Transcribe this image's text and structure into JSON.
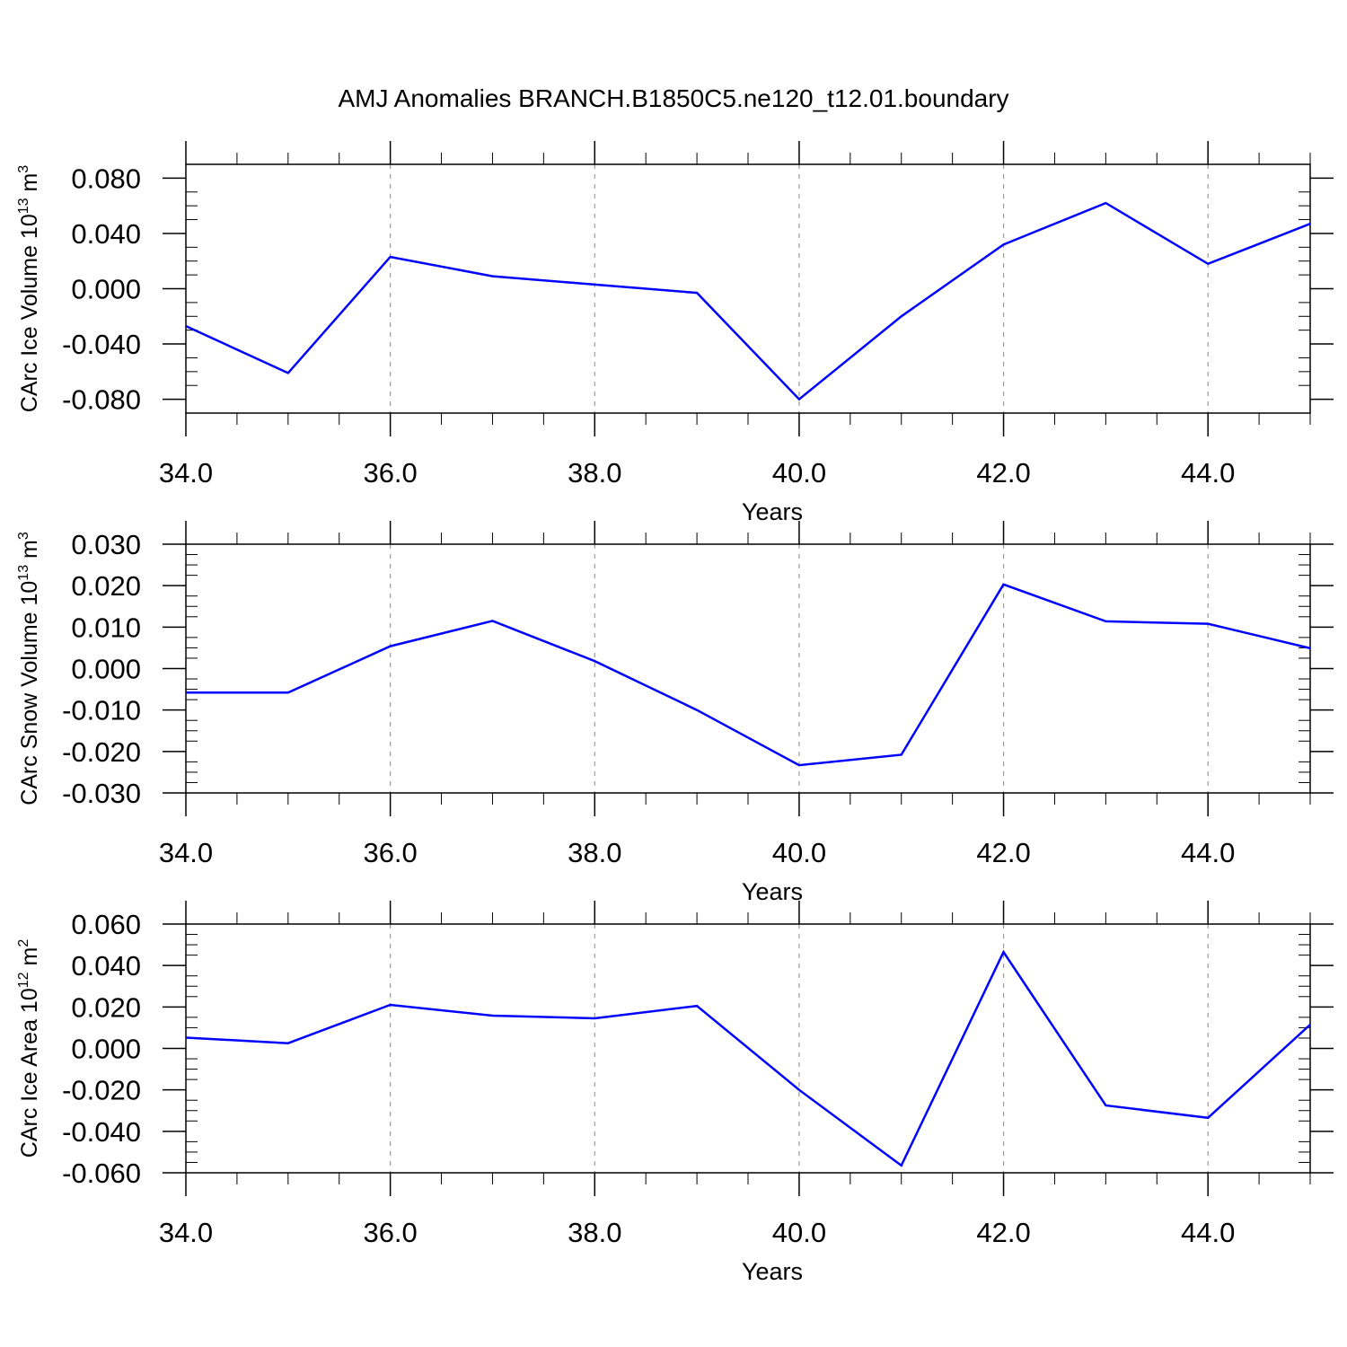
{
  "title": "AMJ Anomalies BRANCH.B1850C5.ne120_t12.01.boundary",
  "chart_data": [
    {
      "type": "line",
      "ylabel": {
        "main": "CArc Ice Volume 10",
        "sup": "13",
        "unit": " m",
        "unit_sup": "3"
      },
      "xlabel": "Years",
      "xlim": [
        34,
        45
      ],
      "ylim": [
        -0.09,
        0.09
      ],
      "xticks": [
        34,
        36,
        38,
        40,
        42,
        44
      ],
      "xtick_labels": [
        "34.0",
        "36.0",
        "38.0",
        "40.0",
        "42.0",
        "44.0"
      ],
      "yticks": [
        0.08,
        0.04,
        0.0,
        -0.04,
        -0.08
      ],
      "ytick_labels": [
        "0.080",
        "0.040",
        "0.000",
        "-0.040",
        "-0.080"
      ],
      "grid": "vertical dashed at major x ticks",
      "x": [
        34,
        35,
        36,
        37,
        38,
        39,
        40,
        41,
        42,
        43,
        44,
        45
      ],
      "series": [
        {
          "color": "#0000ff",
          "values": [
            -0.027,
            -0.061,
            0.023,
            0.009,
            0.003,
            -0.003,
            -0.08,
            -0.02,
            0.032,
            0.062,
            0.018,
            0.047
          ]
        }
      ]
    },
    {
      "type": "line",
      "ylabel": {
        "main": "CArc Snow Volume 10",
        "sup": "13",
        "unit": " m",
        "unit_sup": "3"
      },
      "xlabel": "Years",
      "xlim": [
        34,
        45
      ],
      "ylim": [
        -0.03,
        0.03
      ],
      "xticks": [
        34,
        36,
        38,
        40,
        42,
        44
      ],
      "xtick_labels": [
        "34.0",
        "36.0",
        "38.0",
        "40.0",
        "42.0",
        "44.0"
      ],
      "yticks": [
        0.03,
        0.02,
        0.01,
        0.0,
        -0.01,
        -0.02,
        -0.03
      ],
      "ytick_labels": [
        "0.030",
        "0.020",
        "0.010",
        "0.000",
        "-0.010",
        "-0.020",
        "-0.030"
      ],
      "grid": "vertical dashed at major x ticks",
      "x": [
        34,
        35,
        36,
        37,
        38,
        39,
        40,
        41,
        42,
        43,
        44,
        45
      ],
      "series": [
        {
          "color": "#0000ff",
          "values": [
            -0.0058,
            -0.0058,
            0.0054,
            0.0115,
            0.0018,
            -0.01,
            -0.0233,
            -0.0208,
            0.0203,
            0.0114,
            0.0108,
            0.0049
          ]
        }
      ]
    },
    {
      "type": "line",
      "ylabel": {
        "main": "CArc Ice Area 10",
        "sup": "12",
        "unit": " m",
        "unit_sup": "2"
      },
      "xlabel": "Years",
      "xlim": [
        34,
        45
      ],
      "ylim": [
        -0.06,
        0.06
      ],
      "xticks": [
        34,
        36,
        38,
        40,
        42,
        44
      ],
      "xtick_labels": [
        "34.0",
        "36.0",
        "38.0",
        "40.0",
        "42.0",
        "44.0"
      ],
      "yticks": [
        0.06,
        0.04,
        0.02,
        0.0,
        -0.02,
        -0.04,
        -0.06
      ],
      "ytick_labels": [
        "0.060",
        "0.040",
        "0.020",
        "0.000",
        "-0.020",
        "-0.040",
        "-0.060"
      ],
      "grid": "vertical dashed at major x ticks",
      "x": [
        34,
        35,
        36,
        37,
        38,
        39,
        40,
        41,
        42,
        43,
        44,
        45
      ],
      "series": [
        {
          "color": "#0000ff",
          "values": [
            0.0052,
            0.0025,
            0.021,
            0.0158,
            0.0145,
            0.0205,
            -0.02,
            -0.0565,
            0.0465,
            -0.0275,
            -0.0335,
            0.0115
          ]
        }
      ]
    }
  ]
}
